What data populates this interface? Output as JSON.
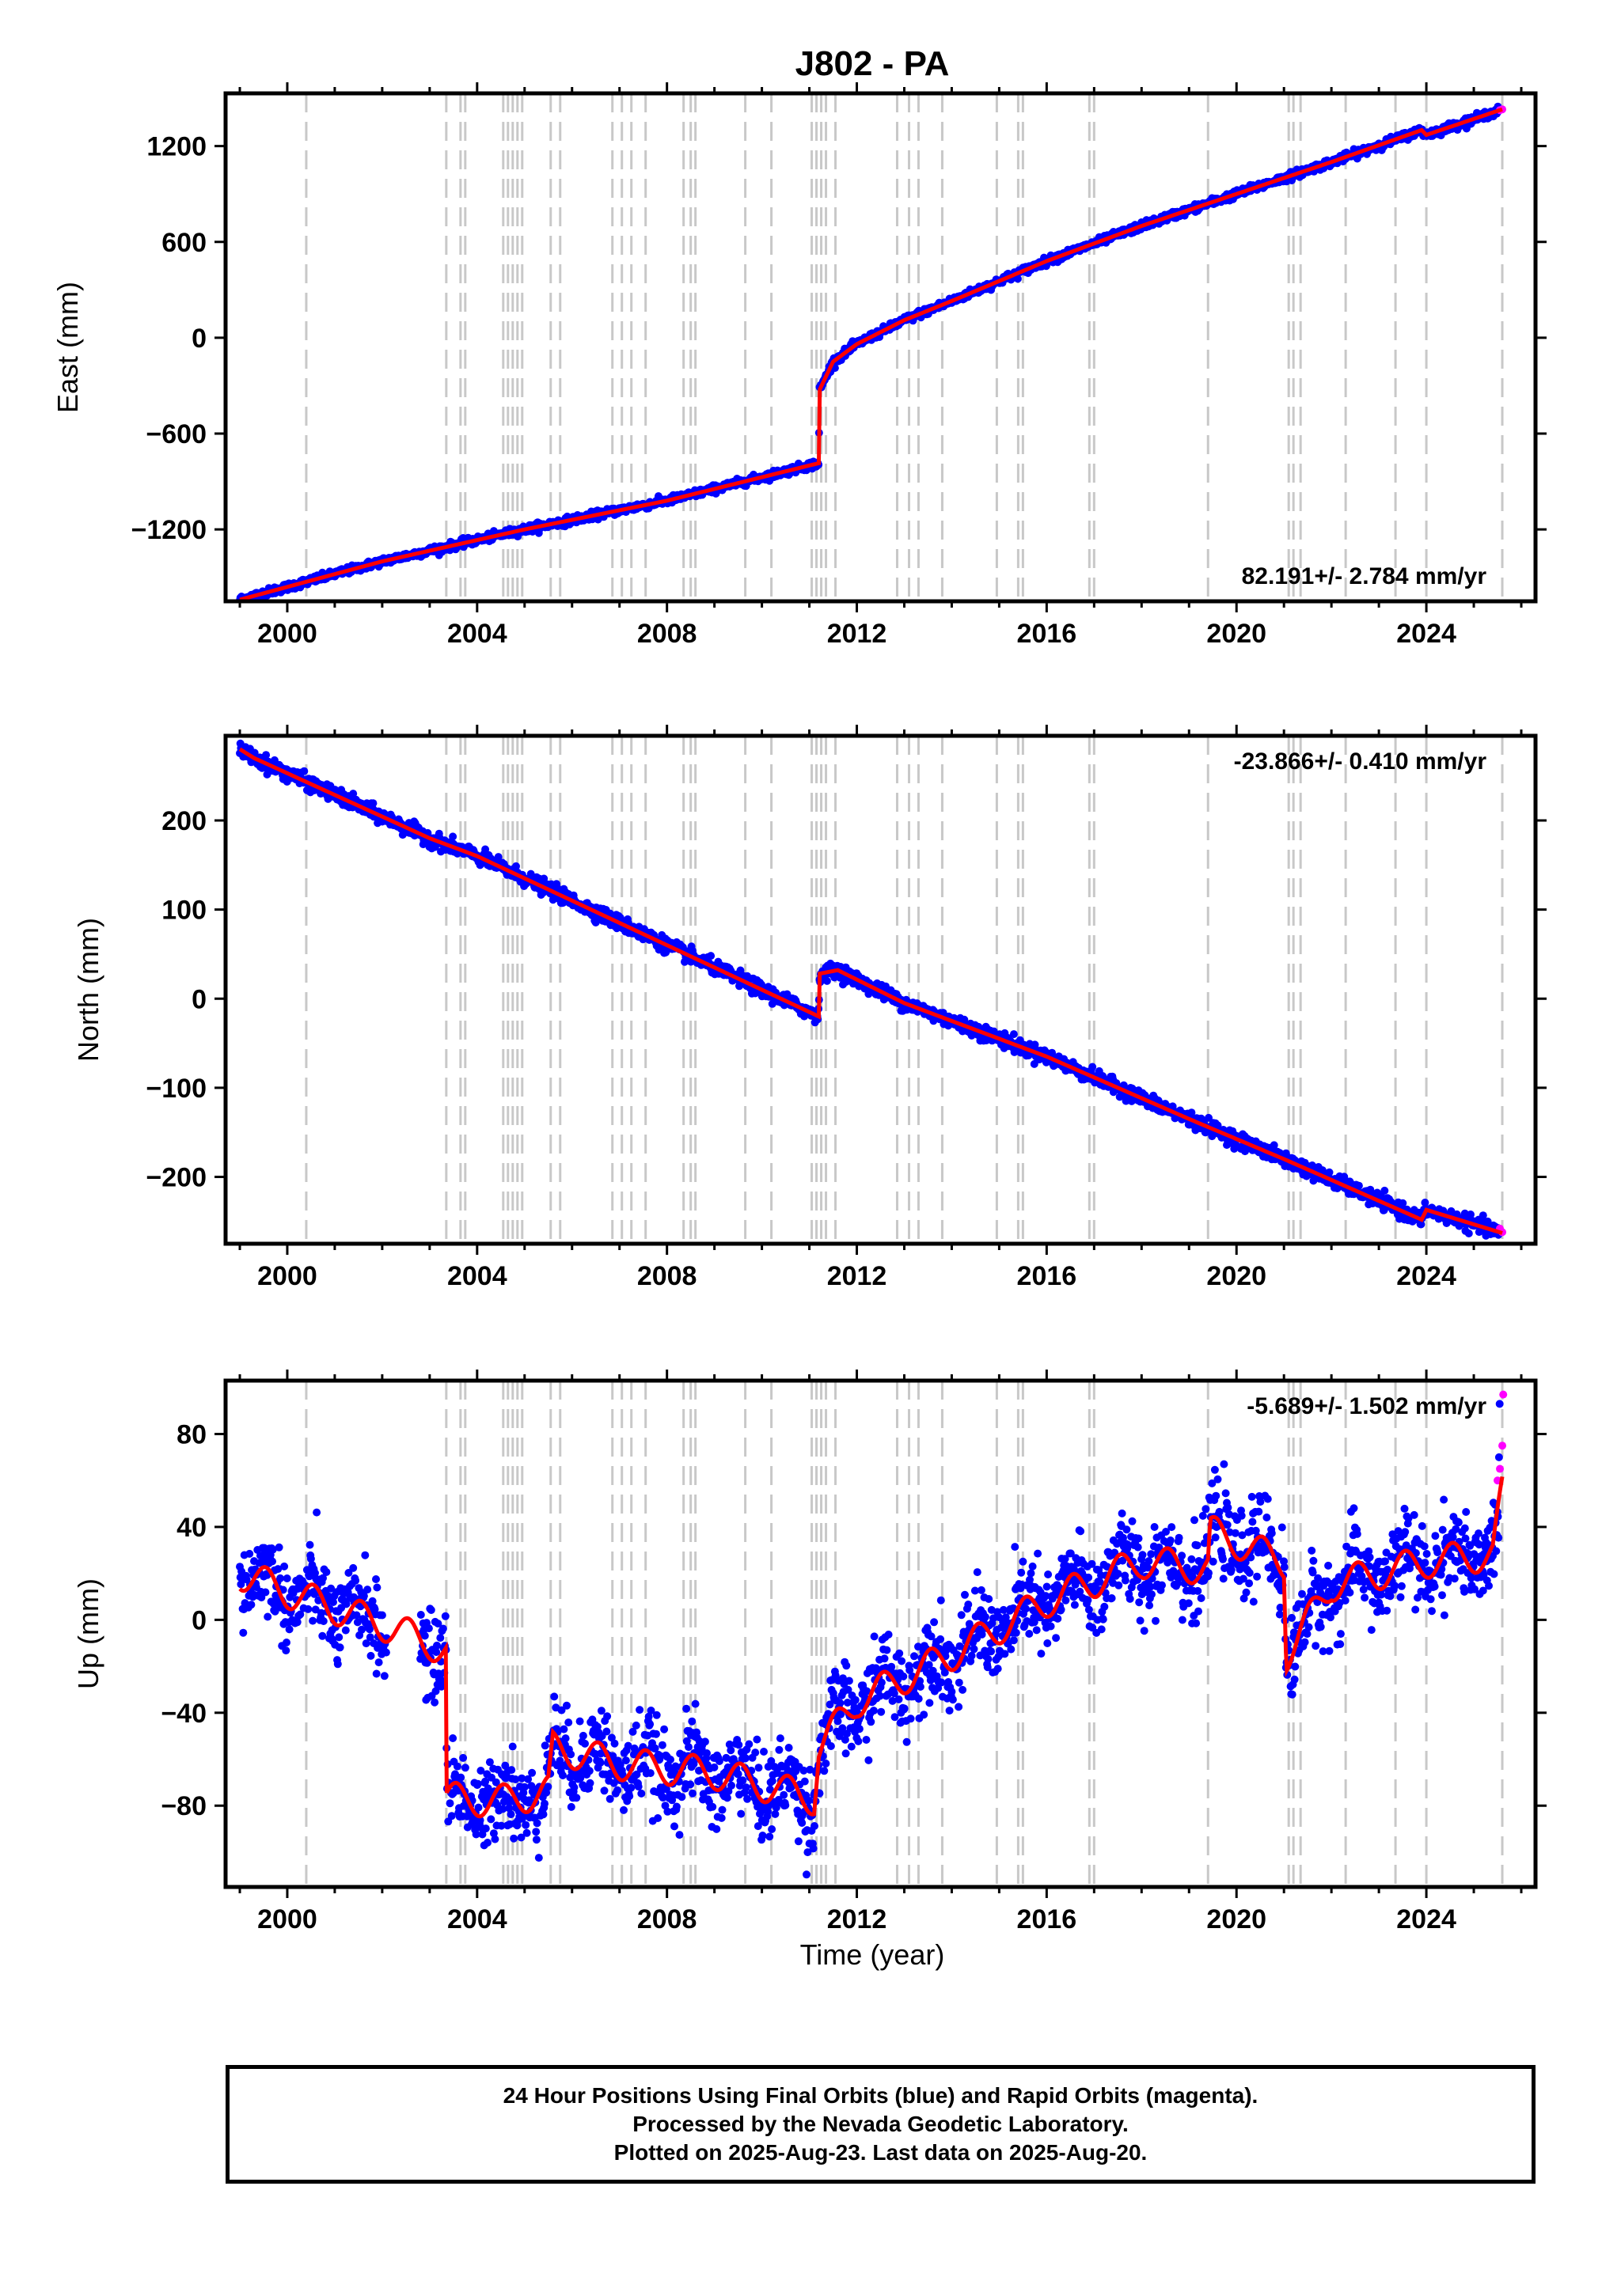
{
  "title": "J802 - PA",
  "x_axis_label": "Time (year)",
  "colors": {
    "final_orbits": "#0000ff",
    "rapid_orbits": "#ff00ff",
    "model": "#ff0000",
    "event_lines": "#c8c8c8"
  },
  "chart_data": [
    {
      "type": "scatter",
      "component": "East",
      "ylabel": "East (mm)",
      "ylim": [
        -1650,
        1530
      ],
      "xlim": [
        1998.7,
        2026.3
      ],
      "yticks": [
        -1200,
        -600,
        0,
        600,
        1200
      ],
      "xticks": [
        2000,
        2004,
        2008,
        2012,
        2016,
        2020,
        2024
      ],
      "velocity_label": "82.191+/- 2.784 mm/yr",
      "velocity_position": "bottom-right",
      "trend": {
        "x": [
          1999.0,
          2002.0,
          2005.0,
          2008.0,
          2011.2,
          2011.21,
          2011.5,
          2012.0,
          2013.0,
          2014.0,
          2016.0,
          2018.0,
          2020.0,
          2022.0,
          2023.9,
          2024.0,
          2025.6
        ],
        "y": [
          -1640,
          -1400,
          -1200,
          -1020,
          -785,
          -330,
          -150,
          -40,
          110,
          230,
          480,
          700,
          900,
          1100,
          1300,
          1270,
          1430
        ]
      },
      "noise_mm": 12,
      "rapid_points": {
        "x": [
          2025.55,
          2025.6
        ],
        "y": [
          1425,
          1430
        ]
      }
    },
    {
      "type": "scatter",
      "component": "North",
      "ylabel": "North (mm)",
      "ylim": [
        -275,
        295
      ],
      "xlim": [
        1998.7,
        2026.3
      ],
      "yticks": [
        -200,
        -100,
        0,
        100,
        200
      ],
      "xticks": [
        2000,
        2004,
        2008,
        2012,
        2016,
        2020,
        2024
      ],
      "velocity_label": "-23.866+/- 0.410 mm/yr",
      "velocity_position": "top-right",
      "trend": {
        "x": [
          1999.0,
          1999.3,
          2003.0,
          2004.0,
          2007.0,
          2009.0,
          2011.2,
          2011.21,
          2011.6,
          2013.0,
          2016.0,
          2019.0,
          2021.0,
          2023.9,
          2024.0,
          2025.6
        ],
        "y": [
          280,
          270,
          180,
          160,
          85,
          35,
          -20,
          28,
          32,
          -5,
          -65,
          -135,
          -180,
          -248,
          -237,
          -263
        ]
      },
      "noise_mm": 4,
      "rapid_points": {
        "x": [
          2025.55,
          2025.6
        ],
        "y": [
          -258,
          -262
        ]
      }
    },
    {
      "type": "scatter",
      "component": "Up",
      "ylabel": "Up (mm)",
      "ylim": [
        -115,
        103
      ],
      "xlim": [
        1998.7,
        2026.3
      ],
      "yticks": [
        -80,
        -40,
        0,
        40,
        80
      ],
      "xticks": [
        2000,
        2004,
        2008,
        2012,
        2016,
        2020,
        2024
      ],
      "velocity_label": "-5.689+/- 1.502 mm/yr",
      "velocity_position": "top-right",
      "trend": {
        "x": [
          1999.0,
          2000.0,
          2001.0,
          2002.0,
          2003.0,
          2003.35,
          2003.36,
          2004.5,
          2005.5,
          2005.6,
          2007.0,
          2009.0,
          2011.1,
          2011.2,
          2012.0,
          2014.0,
          2016.0,
          2018.0,
          2019.4,
          2019.45,
          2021.0,
          2021.05,
          2022.0,
          2024.0,
          2025.4,
          2025.6
        ],
        "y": [
          20,
          12,
          5,
          -2,
          -10,
          -14,
          -77,
          -78,
          -74,
          -55,
          -62,
          -66,
          -77,
          -55,
          -35,
          -15,
          8,
          25,
          22,
          38,
          25,
          -15,
          15,
          25,
          28,
          55
        ]
      },
      "seasonal_amp_mm": 7,
      "noise_mm": 9,
      "gap": [
        2002.1,
        2002.8
      ],
      "rapid_points": {
        "x": [
          2025.5,
          2025.55,
          2025.6,
          2025.62
        ],
        "y": [
          60,
          65,
          75,
          97
        ]
      }
    }
  ],
  "event_lines_x": [
    2000.4,
    2003.35,
    2003.65,
    2003.75,
    2004.55,
    2004.65,
    2004.75,
    2004.85,
    2004.95,
    2005.55,
    2005.75,
    2006.85,
    2007.05,
    2007.25,
    2007.55,
    2008.35,
    2008.5,
    2008.6,
    2009.65,
    2010.2,
    2011.05,
    2011.15,
    2011.25,
    2011.35,
    2011.55,
    2012.85,
    2013.1,
    2013.3,
    2013.8,
    2014.95,
    2015.4,
    2015.5,
    2016.9,
    2017.0,
    2019.4,
    2021.1,
    2021.2,
    2021.35,
    2022.3,
    2023.35,
    2024.0,
    2025.6
  ],
  "caption": {
    "line1": "24 Hour Positions Using Final Orbits (blue) and Rapid Orbits (magenta).",
    "line2": "Processed by the Nevada Geodetic Laboratory.",
    "line3": "Plotted on 2025-Aug-23. Last data on 2025-Aug-20."
  }
}
